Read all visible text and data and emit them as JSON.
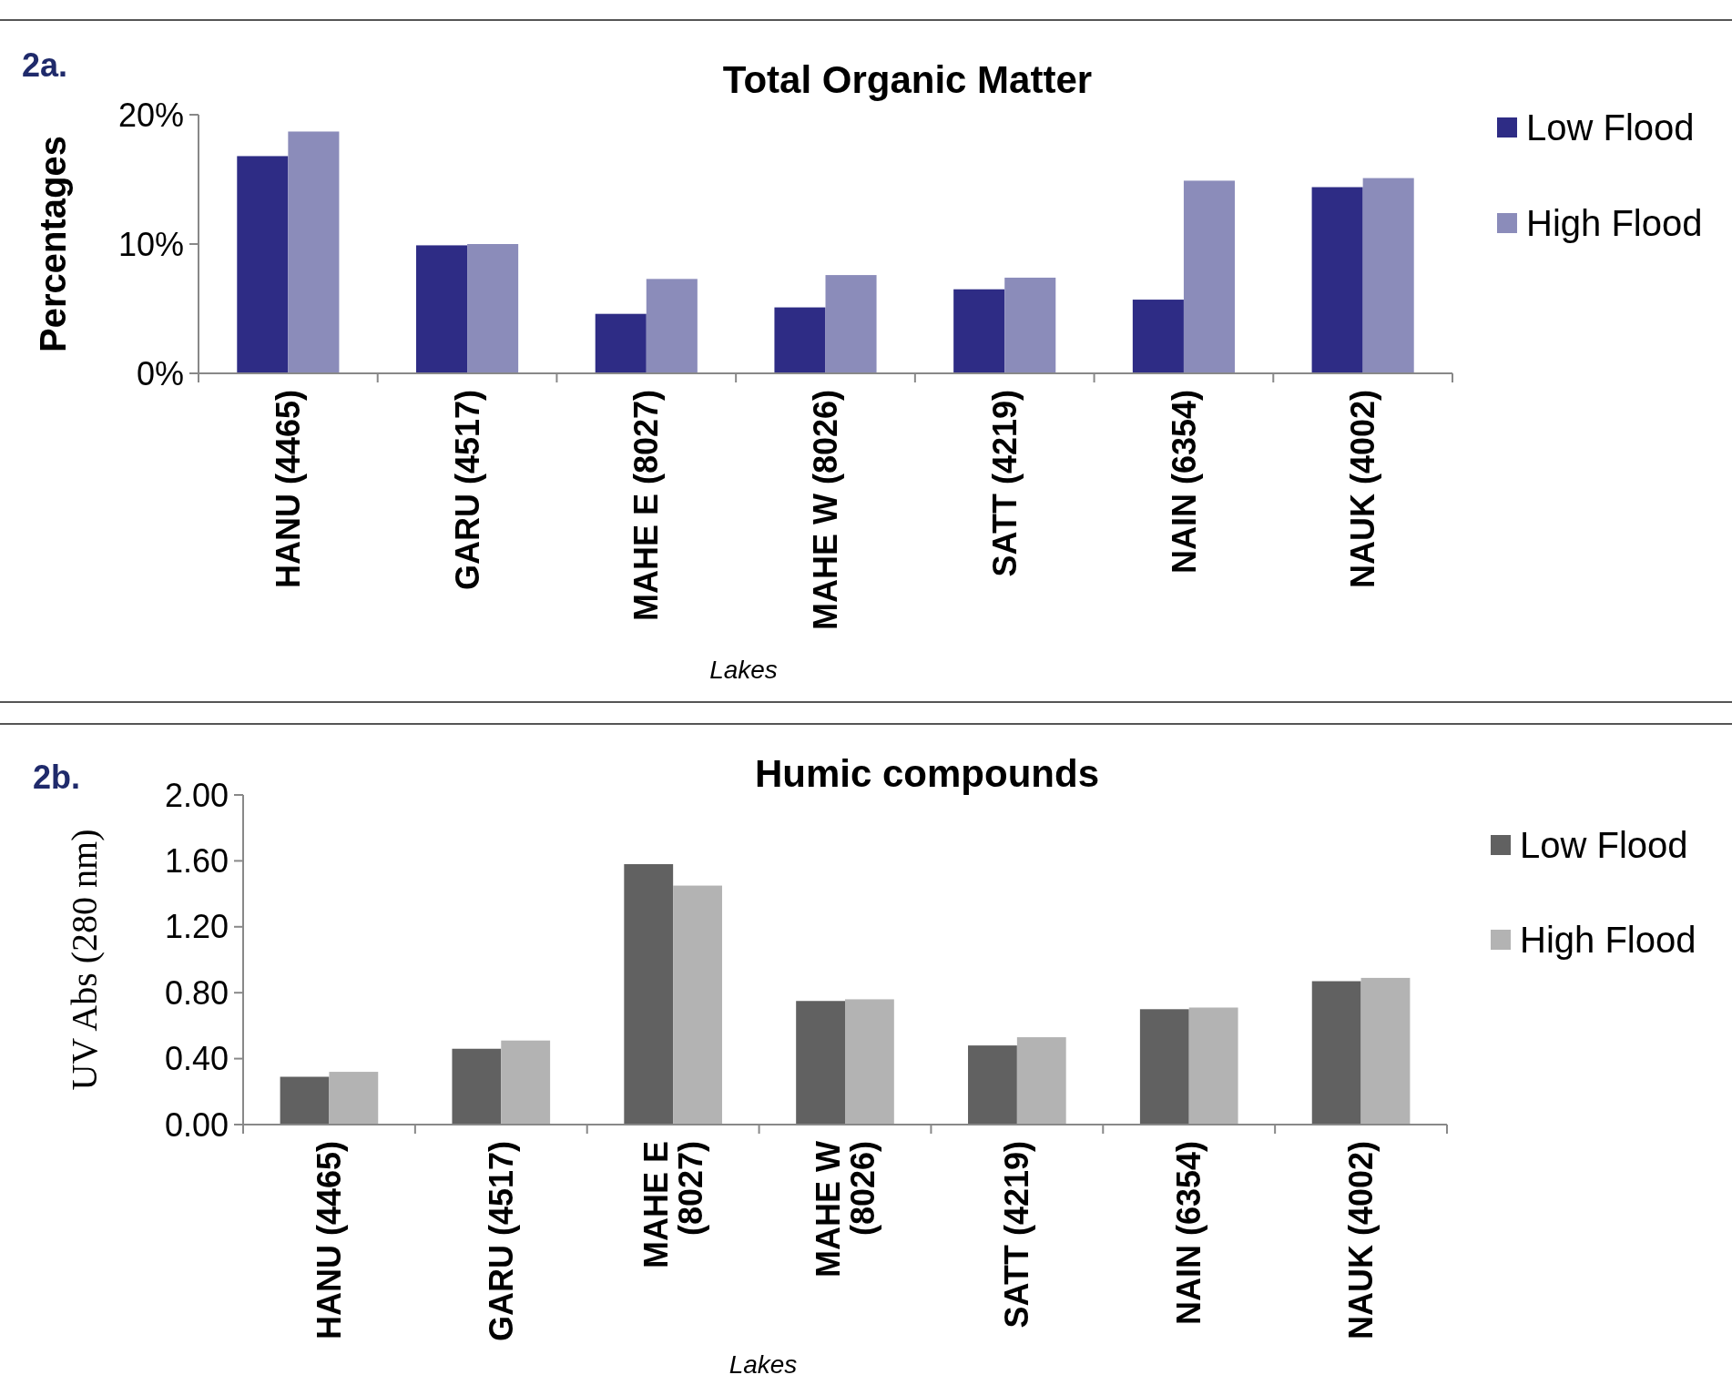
{
  "chart_data": [
    {
      "type": "bar",
      "title": "Total Organic Matter",
      "xlabel": "Lakes",
      "ylabel": "Percentages",
      "annotations": [
        "2a."
      ],
      "categories": [
        "HANU (4465)",
        "GARU (4517)",
        "MAHE E (8027)",
        "MAHE W (8026)",
        "SATT (4219)",
        "NAIN (6354)",
        "NAUK (4002)"
      ],
      "series": [
        {
          "name": "Low Flood",
          "color": "#2e2c85",
          "values": [
            16.8,
            9.9,
            4.6,
            5.1,
            6.5,
            5.7,
            14.4
          ]
        },
        {
          "name": "High Flood",
          "color": "#8b8cba",
          "values": [
            18.7,
            10.0,
            7.3,
            7.6,
            7.4,
            14.9,
            15.1
          ]
        }
      ],
      "ylim": [
        0,
        20
      ],
      "yticks": [
        {
          "value": 0,
          "label": "0%"
        },
        {
          "value": 10,
          "label": "10%"
        },
        {
          "value": 20,
          "label": "20%"
        }
      ],
      "legend": "top right"
    },
    {
      "type": "bar",
      "title": "Humic compounds",
      "xlabel": "Lakes",
      "ylabel": "UV Abs (280 nm)",
      "annotations": [
        "2b."
      ],
      "categories": [
        "HANU (4465)",
        "GARU (4517)",
        "MAHE E (8027)",
        "MAHE W (8026)",
        "SATT (4219)",
        "NAIN (6354)",
        "NAUK (4002)"
      ],
      "series": [
        {
          "name": "Low Flood",
          "color": "#616161",
          "values": [
            0.29,
            0.46,
            1.58,
            0.75,
            0.48,
            0.7,
            0.87
          ]
        },
        {
          "name": "High Flood",
          "color": "#b3b3b3",
          "values": [
            0.32,
            0.51,
            1.45,
            0.76,
            0.53,
            0.71,
            0.89
          ]
        }
      ],
      "ylim": [
        0,
        2
      ],
      "yticks": [
        {
          "value": 0,
          "label": "0.00"
        },
        {
          "value": 0.4,
          "label": "0.40"
        },
        {
          "value": 0.8,
          "label": "0.80"
        },
        {
          "value": 1.2,
          "label": "1.20"
        },
        {
          "value": 1.6,
          "label": "1.60"
        },
        {
          "value": 2,
          "label": "2.00"
        }
      ],
      "legend": "top right"
    }
  ]
}
